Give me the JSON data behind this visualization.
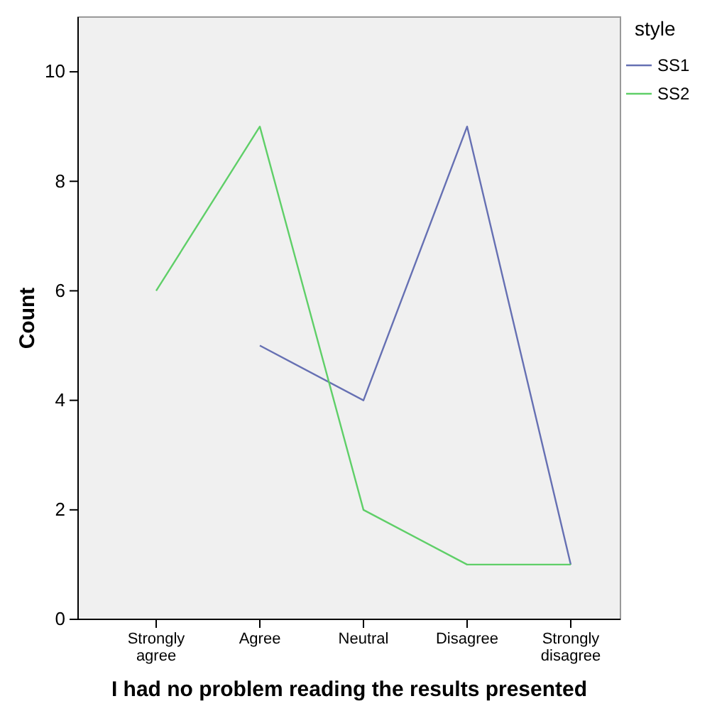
{
  "chart_data": {
    "type": "line",
    "xlabel": "I had no problem reading the results presented",
    "ylabel": "Count",
    "legend_title": "style",
    "legend": "right",
    "categories": [
      "Strongly agree",
      "Agree",
      "Neutral",
      "Disagree",
      "Strongly disagree"
    ],
    "series": [
      {
        "name": "SS1",
        "color": "#6670b3",
        "values": [
          null,
          5,
          4,
          9,
          1
        ]
      },
      {
        "name": "SS2",
        "color": "#5fcf68",
        "values": [
          6,
          9,
          2,
          1,
          1
        ]
      }
    ],
    "ylim": [
      0,
      11
    ],
    "yticks": [
      0,
      2,
      4,
      6,
      8,
      10
    ],
    "grid": false
  }
}
